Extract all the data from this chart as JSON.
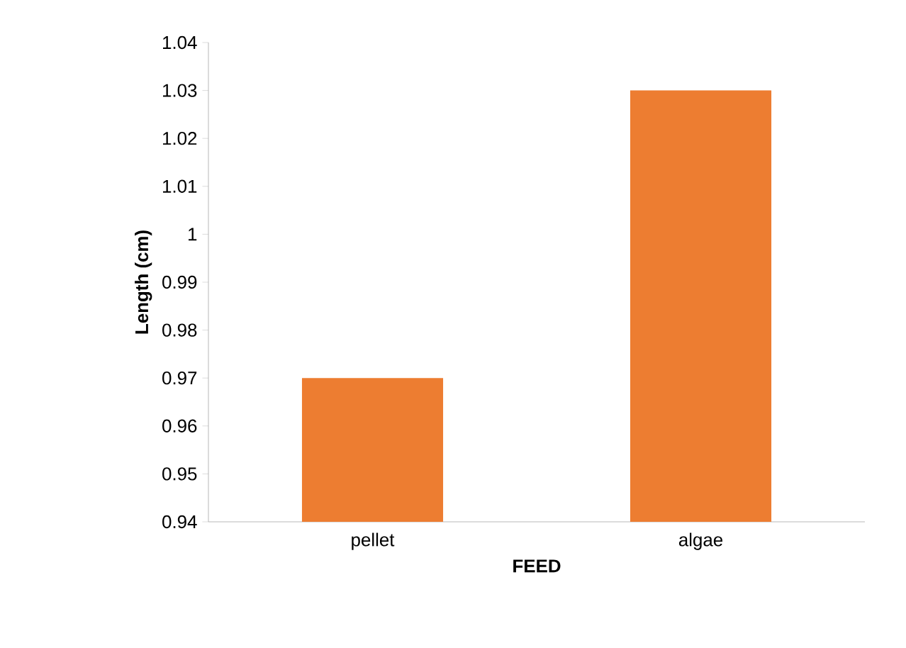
{
  "chart_data": {
    "type": "bar",
    "xlabel": "FEED",
    "ylabel": "Length (cm)",
    "categories": [
      "pellet",
      "algae"
    ],
    "values": [
      0.97,
      1.03
    ],
    "color": "#ed7d31",
    "ylim": [
      0.94,
      1.04
    ],
    "yticks": [
      0.94,
      0.95,
      0.96,
      0.97,
      0.98,
      0.99,
      1,
      1.01,
      1.02,
      1.03,
      1.04
    ],
    "grid": false
  }
}
